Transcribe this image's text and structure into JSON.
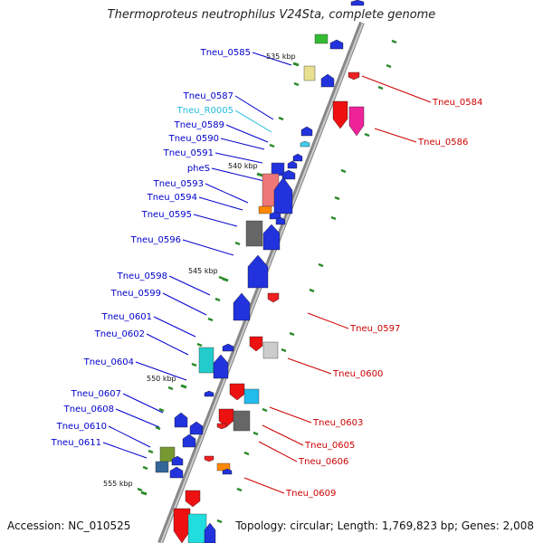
{
  "title": "Thermoproteus neutrophilus V24Sta, complete genome",
  "accession": "Accession: NC_010525",
  "summary": "Topology: circular; Length: 1,769,823 bp; Genes: 2,008",
  "colors": {
    "left_label": "#0000cc",
    "right_label": "#cc0000",
    "rna_label": "#22bbdd",
    "backbone": "#888888"
  },
  "scale_labels": [
    "535 kbp",
    "540 kbp",
    "545 kbp",
    "550 kbp",
    "555 kbp"
  ],
  "left_genes": [
    "Tneu_0585",
    "Tneu_0587",
    "Tneu_R0005",
    "Tneu_0589",
    "Tneu_0590",
    "Tneu_0591",
    "pheS",
    "Tneu_0593",
    "Tneu_0594",
    "Tneu_0595",
    "Tneu_0596",
    "Tneu_0598",
    "Tneu_0599",
    "Tneu_0601",
    "Tneu_0602",
    "Tneu_0604",
    "Tneu_0607",
    "Tneu_0608",
    "Tneu_0610",
    "Tneu_0611"
  ],
  "right_genes": [
    "Tneu_0584",
    "Tneu_0586",
    "Tneu_0597",
    "Tneu_0600",
    "Tneu_0603",
    "Tneu_0605",
    "Tneu_0606",
    "Tneu_0609"
  ]
}
